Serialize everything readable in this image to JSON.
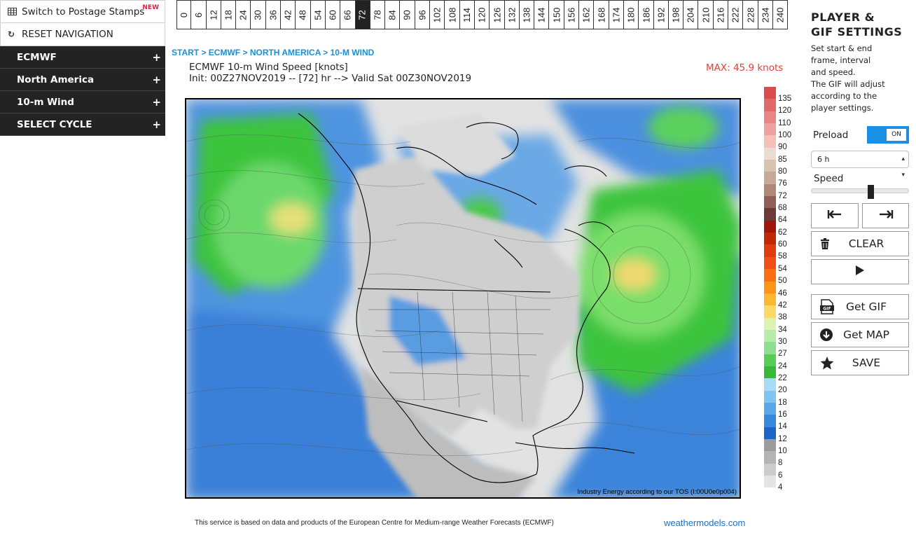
{
  "sidebar": {
    "postage_label": "Switch to Postage Stamps",
    "postage_new": "NEW",
    "reset_label": "RESET NAVIGATION",
    "menus": [
      {
        "label": "ECMWF"
      },
      {
        "label": "North America"
      },
      {
        "label": "10-m Wind"
      },
      {
        "label": "SELECT CYCLE"
      }
    ]
  },
  "hours": [
    "0",
    "6",
    "12",
    "18",
    "24",
    "30",
    "36",
    "42",
    "48",
    "54",
    "60",
    "66",
    "72",
    "78",
    "84",
    "90",
    "96",
    "102",
    "108",
    "114",
    "120",
    "126",
    "132",
    "138",
    "144",
    "150",
    "156",
    "162",
    "168",
    "174",
    "180",
    "186",
    "192",
    "198",
    "204",
    "210",
    "216",
    "222",
    "228",
    "234",
    "240"
  ],
  "selected_hour": "72",
  "breadcrumb": [
    "START",
    "ECMWF",
    "NORTH AMERICA",
    "10-M WIND"
  ],
  "breadcrumb_sep": " > ",
  "map": {
    "title_line1": "ECMWF 10-m Wind Speed [knots]",
    "title_line2": "Init: 00Z27NOV2019 -- [72] hr --> Valid Sat 00Z30NOV2019",
    "max_label": "MAX: 45.9 knots",
    "credit": "Industry Energy according to our TOS (I:00U0e0p004)"
  },
  "colorbar": {
    "levels": [
      "135",
      "120",
      "110",
      "100",
      "90",
      "85",
      "80",
      "76",
      "72",
      "68",
      "64",
      "62",
      "60",
      "58",
      "54",
      "50",
      "46",
      "42",
      "38",
      "34",
      "30",
      "27",
      "24",
      "22",
      "20",
      "18",
      "16",
      "14",
      "12",
      "10",
      "8",
      "6",
      "4"
    ],
    "colors": [
      "#d94c4c",
      "#e06a6a",
      "#e88686",
      "#f0a0a0",
      "#f5c0b8",
      "#eadcd0",
      "#d8c2b0",
      "#c8a898",
      "#b08878",
      "#906058",
      "#703838",
      "#a01808",
      "#c02808",
      "#e03c10",
      "#f05018",
      "#fa7010",
      "#fc9418",
      "#fcb830",
      "#fcd868",
      "#dcf4b0",
      "#b8ecac",
      "#8ce090",
      "#58cc58",
      "#38b838",
      "#a8dcf4",
      "#80c4f0",
      "#58a8ea",
      "#3888de",
      "#1c64c8",
      "#9c9c9c",
      "#b4b4b4",
      "#cccccc",
      "#e4e4e4"
    ]
  },
  "footer": {
    "note": "This service is based on data and products of the European Centre for Medium-range Weather Forecasts (ECMWF)",
    "brand": "weathermodels.com"
  },
  "panel": {
    "title_line1": "PLAYER &",
    "title_line2": "GIF SETTINGS",
    "desc": [
      "Set start & end",
      "frame, interval",
      "and speed.",
      "The GIF will adjust",
      "according to the",
      "player settings."
    ],
    "preload_label": "Preload",
    "preload_state": "ON",
    "interval_value": "6 h",
    "speed_label": "Speed",
    "speed_fraction": 0.62,
    "clear_label": "CLEAR",
    "gif_badge": "GIF",
    "get_gif_label": "Get GIF",
    "get_map_label": "Get MAP",
    "save_label": "SAVE"
  },
  "colors": {
    "accent": "#1a8fd6",
    "max_red": "#e0403a",
    "toggle_blue": "#1a8fe6",
    "sidebar_dark": "#232323"
  }
}
